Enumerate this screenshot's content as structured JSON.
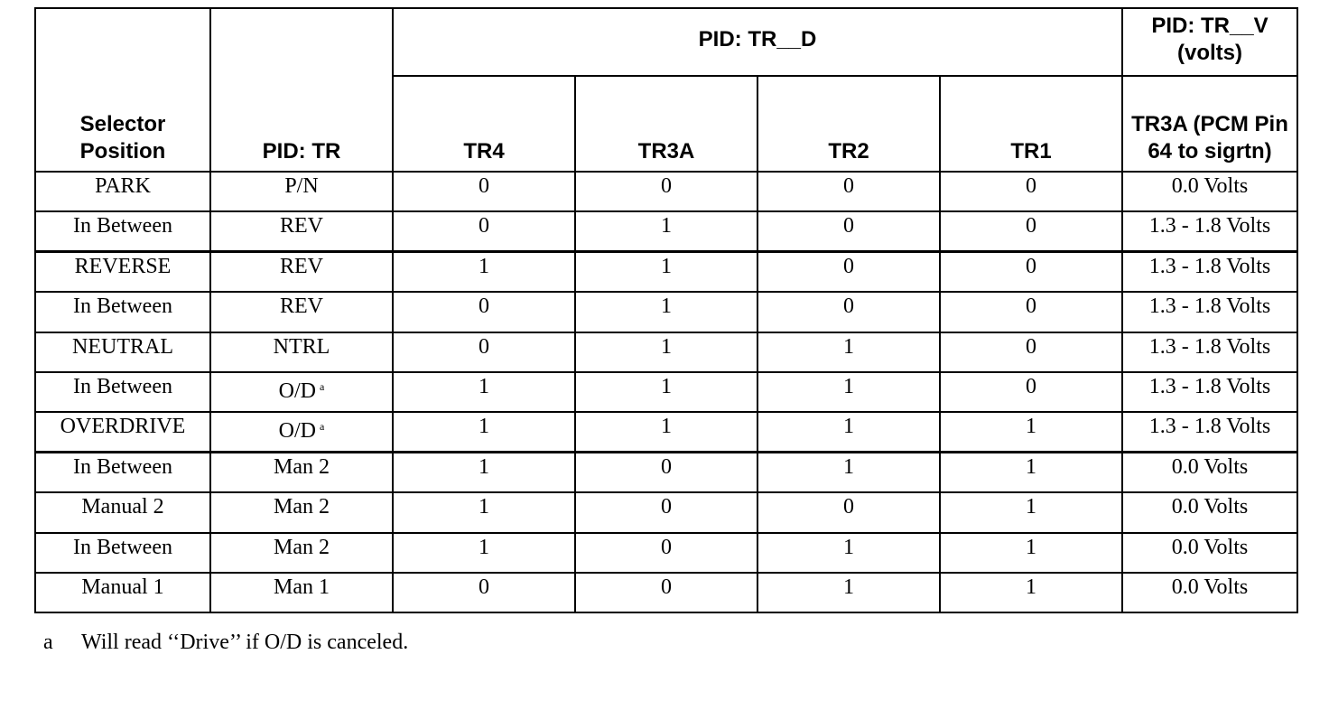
{
  "table": {
    "header": {
      "selector": "Selector Position",
      "pid_tr": "PID: TR",
      "pid_trd": "PID: TR__D",
      "pid_trv": "PID: TR__V (volts)",
      "sub": [
        "TR4",
        "TR3A",
        "TR2",
        "TR1",
        "TR3A (PCM Pin 64 to sigrtn)"
      ]
    },
    "rows": [
      [
        "PARK",
        "P/N",
        "0",
        "0",
        "0",
        "0",
        "0.0 Volts"
      ],
      [
        "In Between",
        "REV",
        "0",
        "1",
        "0",
        "0",
        "1.3 - 1.8 Volts"
      ],
      [
        "REVERSE",
        "REV",
        "1",
        "1",
        "0",
        "0",
        "1.3 - 1.8 Volts"
      ],
      [
        "In Between",
        "REV",
        "0",
        "1",
        "0",
        "0",
        "1.3 - 1.8 Volts"
      ],
      [
        "NEUTRAL",
        "NTRL",
        "0",
        "1",
        "1",
        "0",
        "1.3 - 1.8 Volts"
      ],
      [
        "In Between",
        {
          "text": "O/D",
          "sup": "a"
        },
        "1",
        "1",
        "1",
        "0",
        "1.3 - 1.8 Volts"
      ],
      [
        "OVERDRIVE",
        {
          "text": "O/D",
          "sup": "a"
        },
        "1",
        "1",
        "1",
        "1",
        "1.3 - 1.8 Volts"
      ],
      [
        "In Between",
        "Man 2",
        "1",
        "0",
        "1",
        "1",
        "0.0 Volts"
      ],
      [
        "Manual 2",
        "Man 2",
        "1",
        "0",
        "0",
        "1",
        "0.0 Volts"
      ],
      [
        "In Between",
        "Man 2",
        "1",
        "0",
        "1",
        "1",
        "0.0 Volts"
      ],
      [
        "Manual 1",
        "Man 1",
        "0",
        "0",
        "1",
        "1",
        "0.0 Volts"
      ]
    ]
  },
  "footnote": {
    "mark": "a",
    "text": "Will read ‘‘Drive’’ if O/D is canceled."
  }
}
